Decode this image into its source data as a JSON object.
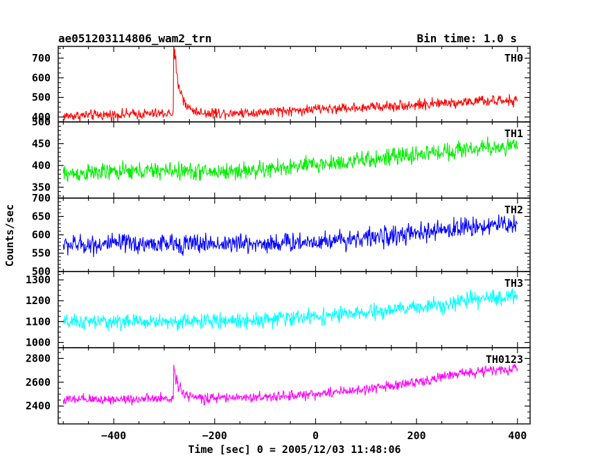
{
  "chart_data": {
    "type": "line",
    "title_left": "ae051203114806_wam2_trn",
    "title_right": "Bin time: 1.0 s",
    "xlabel": "Time [sec] 0 = 2005/12/03 11:48:06",
    "ylabel": "Counts/sec",
    "xlim": [
      -510,
      425
    ],
    "x_ticks": [
      -400,
      -200,
      0,
      200,
      400
    ],
    "x_tick_labels": [
      "−400",
      "−200",
      "0",
      "200",
      "400"
    ],
    "time_range": [
      -500,
      400
    ],
    "series": [
      {
        "name": "TH0",
        "color": "#ff0000",
        "ylim": [
          375,
          760
        ],
        "y_ticks": [
          400,
          500,
          600,
          700
        ],
        "control_points": [
          [
            -500,
            405
          ],
          [
            -400,
            412
          ],
          [
            -300,
            418
          ],
          [
            -285,
            420
          ],
          [
            -200,
            420
          ],
          [
            -100,
            425
          ],
          [
            0,
            440
          ],
          [
            100,
            450
          ],
          [
            200,
            462
          ],
          [
            300,
            478
          ],
          [
            400,
            482
          ]
        ],
        "noise_amplitude": 40,
        "flare": {
          "start": -281,
          "peak_value": 760,
          "decay_seconds": 12
        }
      },
      {
        "name": "TH1",
        "color": "#00ee00",
        "ylim": [
          325,
          500
        ],
        "y_ticks": [
          350,
          400,
          450,
          500
        ],
        "control_points": [
          [
            -500,
            380
          ],
          [
            -400,
            385
          ],
          [
            -300,
            388
          ],
          [
            -200,
            385
          ],
          [
            -100,
            390
          ],
          [
            0,
            402
          ],
          [
            100,
            412
          ],
          [
            200,
            425
          ],
          [
            300,
            438
          ],
          [
            400,
            445
          ]
        ],
        "noise_amplitude": 30
      },
      {
        "name": "TH2",
        "color": "#0000ff",
        "ylim": [
          500,
          700
        ],
        "y_ticks": [
          500,
          550,
          600,
          650,
          700
        ],
        "control_points": [
          [
            -500,
            572
          ],
          [
            -400,
            575
          ],
          [
            -300,
            575
          ],
          [
            -200,
            576
          ],
          [
            -100,
            576
          ],
          [
            0,
            582
          ],
          [
            100,
            592
          ],
          [
            200,
            602
          ],
          [
            300,
            622
          ],
          [
            400,
            630
          ]
        ],
        "noise_amplitude": 40
      },
      {
        "name": "TH3",
        "color": "#00ffff",
        "ylim": [
          975,
          1340
        ],
        "y_ticks": [
          1000,
          1100,
          1200,
          1300
        ],
        "control_points": [
          [
            -500,
            1095
          ],
          [
            -400,
            1100
          ],
          [
            -300,
            1100
          ],
          [
            -200,
            1102
          ],
          [
            -100,
            1110
          ],
          [
            0,
            1125
          ],
          [
            100,
            1140
          ],
          [
            200,
            1168
          ],
          [
            300,
            1200
          ],
          [
            400,
            1225
          ]
        ],
        "noise_amplitude": 55
      },
      {
        "name": "TH0123",
        "color": "#ff00ff",
        "ylim": [
          2250,
          2890
        ],
        "y_ticks": [
          2400,
          2600,
          2800
        ],
        "control_points": [
          [
            -500,
            2450
          ],
          [
            -400,
            2458
          ],
          [
            -300,
            2460
          ],
          [
            -285,
            2462
          ],
          [
            -200,
            2465
          ],
          [
            -100,
            2475
          ],
          [
            0,
            2500
          ],
          [
            100,
            2540
          ],
          [
            200,
            2600
          ],
          [
            300,
            2680
          ],
          [
            400,
            2715
          ]
        ],
        "noise_amplitude": 65,
        "flare": {
          "start": -281,
          "peak_value": 2720,
          "decay_seconds": 12
        }
      }
    ]
  }
}
